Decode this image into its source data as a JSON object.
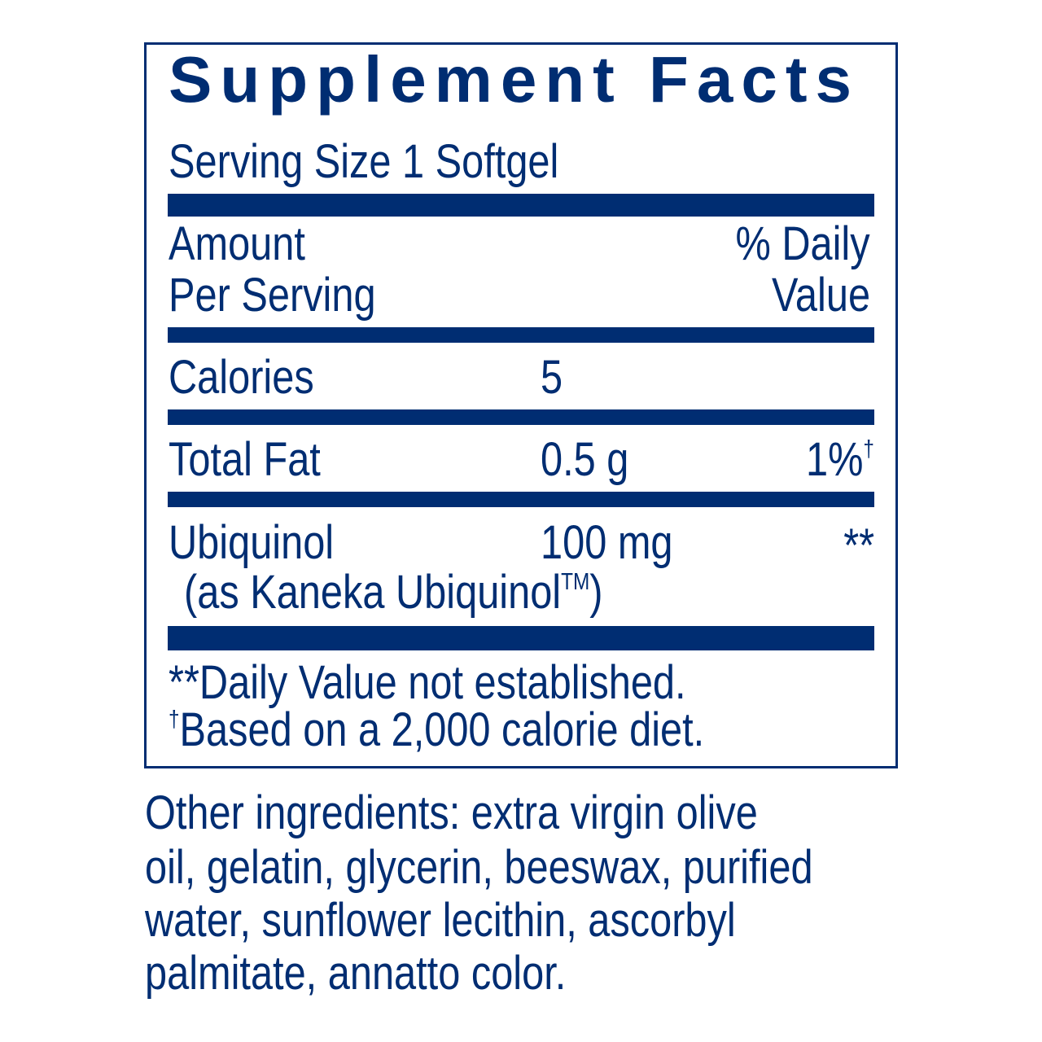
{
  "colors": {
    "label": "#002d72"
  },
  "title": "Supplement Facts",
  "serving_size": "Serving Size 1 Softgel",
  "header": {
    "amount_line1": "Amount",
    "amount_line2": "Per Serving",
    "dv_line1": "% Daily",
    "dv_line2": "Value"
  },
  "rows": [
    {
      "name": "Calories",
      "amount": "5",
      "dv": ""
    },
    {
      "name": "Total Fat",
      "amount": "0.5 g",
      "dv": "1%",
      "dv_mark": "†"
    },
    {
      "name": "Ubiquinol",
      "sub": "(as Kaneka Ubiquinol",
      "sub_mark": "TM",
      "sub_end": ")",
      "amount": "100 mg",
      "dv": "**"
    }
  ],
  "footnotes": {
    "line1": "**Daily Value not established.",
    "line2_mark": "†",
    "line2": "Based on a 2,000 calorie diet."
  },
  "other_ingredients": [
    "Other ingredients: extra virgin olive",
    "oil, gelatin, glycerin, beeswax, purified",
    "water, sunflower lecithin, ascorbyl",
    "palmitate, annatto color."
  ]
}
